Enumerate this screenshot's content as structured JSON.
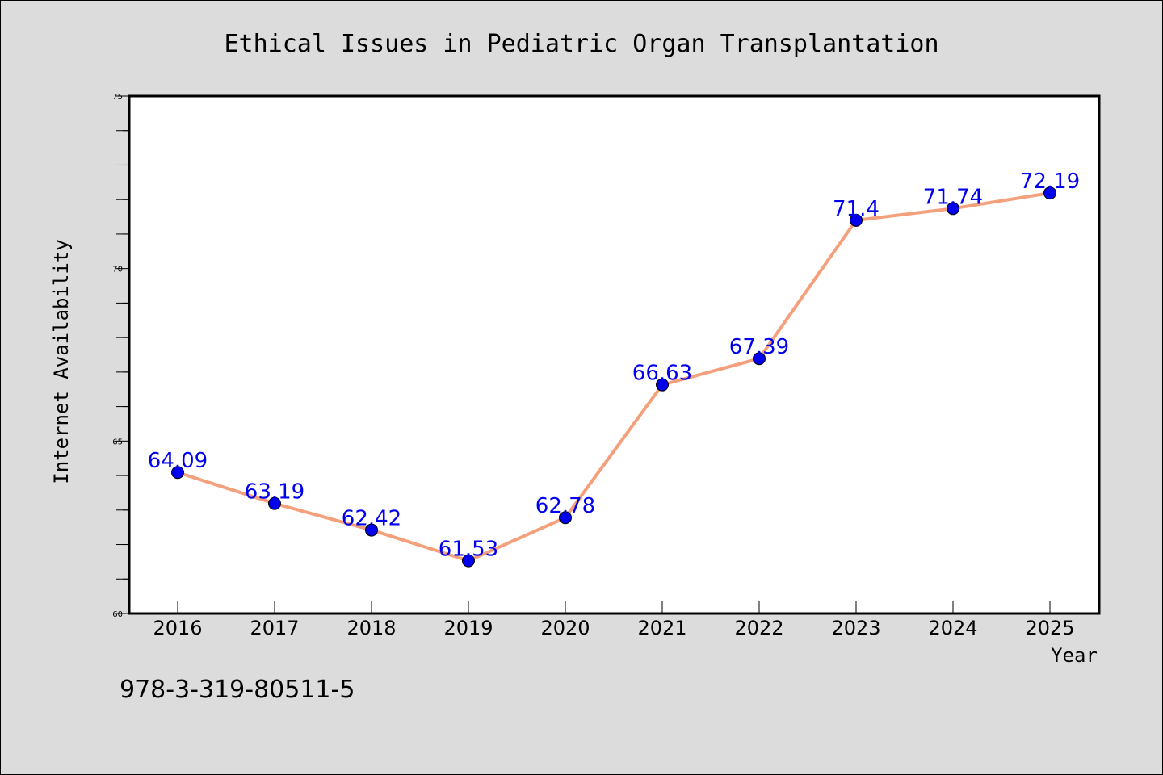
{
  "chart_data": {
    "type": "line",
    "title": "Ethical Issues in Pediatric Organ Transplantation",
    "xlabel": "Year",
    "ylabel": "Internet Availability",
    "categories": [
      "2016",
      "2017",
      "2018",
      "2019",
      "2020",
      "2021",
      "2022",
      "2023",
      "2024",
      "2025"
    ],
    "series": [
      {
        "values": [
          64.09,
          63.19,
          62.42,
          61.53,
          62.78,
          66.63,
          67.39,
          71.4,
          71.74,
          72.19
        ],
        "labels": [
          "64.09",
          "63.19",
          "62.42",
          "61.53",
          "62.78",
          "66.63",
          "67.39",
          "71.4",
          "71.74",
          "72.19"
        ],
        "line_color": "#f4a07c",
        "marker_color": "#0000ee",
        "label_color": "#0000ee"
      }
    ],
    "ylim": [
      60,
      75
    ],
    "yticks": [
      "60",
      "65",
      "70",
      "75"
    ],
    "grid": false,
    "legend": "none"
  },
  "footer": {
    "isbn": "978-3-319-80511-5"
  }
}
